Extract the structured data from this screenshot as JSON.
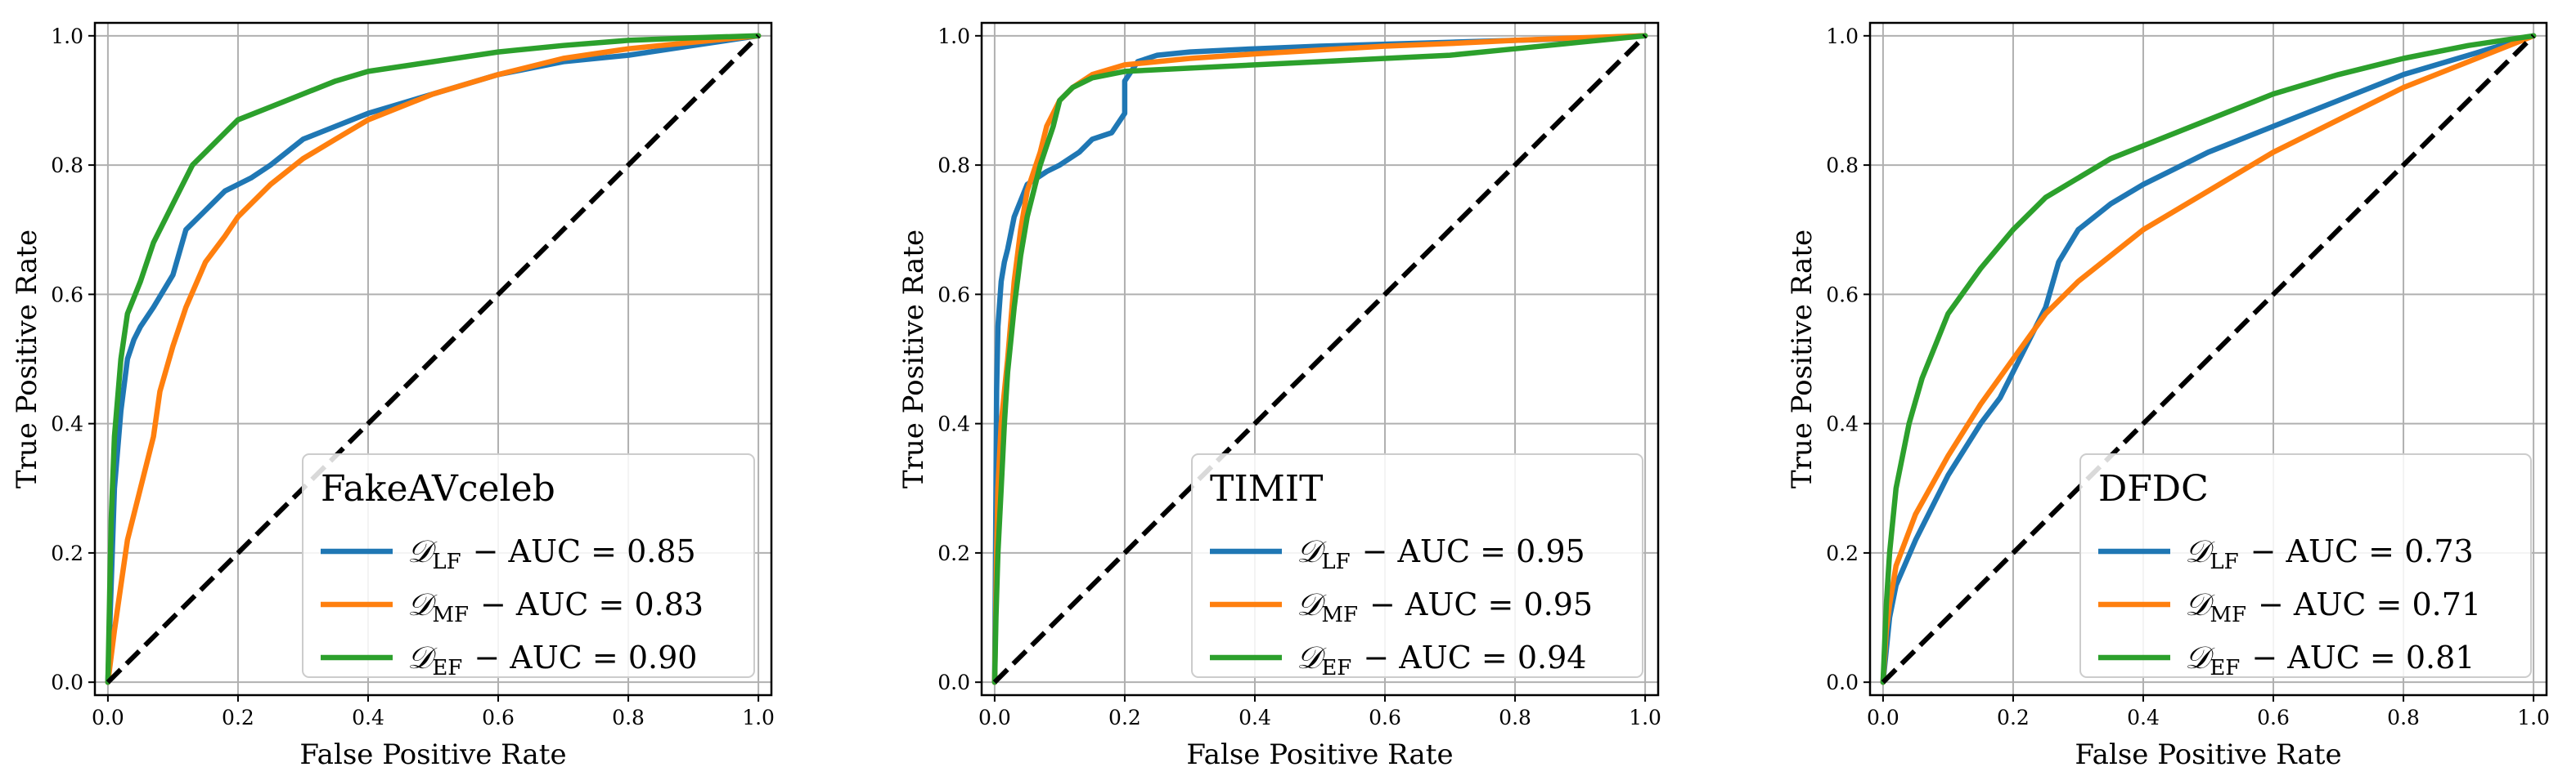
{
  "chart_data": [
    {
      "type": "line",
      "title": "FakeAVceleb",
      "xlabel": "False Positive Rate",
      "ylabel": "True Positive Rate",
      "xlim": [
        0,
        1
      ],
      "ylim": [
        0,
        1
      ],
      "grid": true,
      "legend_position": "lower-right",
      "ticks": {
        "x": [
          {
            "v": 0,
            "label": "0.0"
          },
          {
            "v": 0.2,
            "label": "0.2"
          },
          {
            "v": 0.4,
            "label": "0.4"
          },
          {
            "v": 0.6,
            "label": "0.6"
          },
          {
            "v": 0.8,
            "label": "0.8"
          },
          {
            "v": 1,
            "label": "1.0"
          }
        ],
        "y": [
          {
            "v": 0,
            "label": "0.0"
          },
          {
            "v": 0.2,
            "label": "0.2"
          },
          {
            "v": 0.4,
            "label": "0.4"
          },
          {
            "v": 0.6,
            "label": "0.6"
          },
          {
            "v": 0.8,
            "label": "0.8"
          },
          {
            "v": 1,
            "label": "1.0"
          }
        ]
      },
      "series": [
        {
          "name": "D_LF",
          "sym": "𝒟",
          "sub": "LF",
          "auc_text": "− AUC = 0.85",
          "color": "#1f77b4",
          "x": [
            0,
            0.005,
            0.01,
            0.02,
            0.03,
            0.04,
            0.05,
            0.07,
            0.1,
            0.12,
            0.15,
            0.18,
            0.22,
            0.25,
            0.3,
            0.35,
            0.4,
            0.5,
            0.6,
            0.7,
            0.8,
            0.9,
            1.0
          ],
          "y": [
            0,
            0.15,
            0.3,
            0.42,
            0.5,
            0.53,
            0.55,
            0.58,
            0.63,
            0.7,
            0.73,
            0.76,
            0.78,
            0.8,
            0.84,
            0.86,
            0.88,
            0.91,
            0.94,
            0.96,
            0.97,
            0.985,
            1.0
          ]
        },
        {
          "name": "D_MF",
          "sym": "𝒟",
          "sub": "MF",
          "auc_text": "− AUC = 0.83",
          "color": "#ff7f0e",
          "x": [
            0,
            0.01,
            0.02,
            0.03,
            0.05,
            0.07,
            0.08,
            0.1,
            0.12,
            0.15,
            0.18,
            0.2,
            0.25,
            0.3,
            0.35,
            0.4,
            0.5,
            0.6,
            0.7,
            0.8,
            0.9,
            1.0
          ],
          "y": [
            0,
            0.08,
            0.15,
            0.22,
            0.3,
            0.38,
            0.45,
            0.52,
            0.58,
            0.65,
            0.69,
            0.72,
            0.77,
            0.81,
            0.84,
            0.87,
            0.91,
            0.94,
            0.965,
            0.98,
            0.99,
            1.0
          ]
        },
        {
          "name": "D_EF",
          "sym": "𝒟",
          "sub": "EF",
          "auc_text": "− AUC = 0.90",
          "color": "#2ca02c",
          "x": [
            0,
            0.005,
            0.01,
            0.02,
            0.03,
            0.05,
            0.07,
            0.1,
            0.13,
            0.15,
            0.18,
            0.2,
            0.25,
            0.3,
            0.35,
            0.4,
            0.5,
            0.6,
            0.7,
            0.8,
            0.9,
            1.0
          ],
          "y": [
            0,
            0.25,
            0.38,
            0.5,
            0.57,
            0.62,
            0.68,
            0.74,
            0.8,
            0.82,
            0.85,
            0.87,
            0.89,
            0.91,
            0.93,
            0.945,
            0.96,
            0.975,
            0.985,
            0.993,
            0.997,
            1.0
          ]
        },
        {
          "name": "chance",
          "color": "#000000",
          "dashed": true,
          "x": [
            0,
            1
          ],
          "y": [
            0,
            1
          ]
        }
      ]
    },
    {
      "type": "line",
      "title": "TIMIT",
      "xlabel": "False Positive Rate",
      "ylabel": "True Positive Rate",
      "xlim": [
        0,
        1
      ],
      "ylim": [
        0,
        1
      ],
      "grid": true,
      "legend_position": "lower-right",
      "ticks": {
        "x": [
          {
            "v": 0,
            "label": "0.0"
          },
          {
            "v": 0.2,
            "label": "0.2"
          },
          {
            "v": 0.4,
            "label": "0.4"
          },
          {
            "v": 0.6,
            "label": "0.6"
          },
          {
            "v": 0.8,
            "label": "0.8"
          },
          {
            "v": 1,
            "label": "1.0"
          }
        ],
        "y": [
          {
            "v": 0,
            "label": "0.0"
          },
          {
            "v": 0.2,
            "label": "0.2"
          },
          {
            "v": 0.4,
            "label": "0.4"
          },
          {
            "v": 0.6,
            "label": "0.6"
          },
          {
            "v": 0.8,
            "label": "0.8"
          },
          {
            "v": 1,
            "label": "1.0"
          }
        ]
      },
      "series": [
        {
          "name": "D_LF",
          "sym": "𝒟",
          "sub": "LF",
          "auc_text": "− AUC = 0.95",
          "color": "#1f77b4",
          "x": [
            0,
            0.003,
            0.005,
            0.01,
            0.015,
            0.02,
            0.03,
            0.05,
            0.08,
            0.1,
            0.13,
            0.15,
            0.18,
            0.2,
            0.2,
            0.22,
            0.25,
            0.3,
            0.4,
            0.5,
            0.6,
            0.7,
            0.8,
            0.9,
            1.0
          ],
          "y": [
            0,
            0.45,
            0.55,
            0.62,
            0.65,
            0.67,
            0.72,
            0.77,
            0.79,
            0.8,
            0.82,
            0.84,
            0.85,
            0.88,
            0.93,
            0.96,
            0.97,
            0.975,
            0.98,
            0.984,
            0.987,
            0.99,
            0.993,
            0.996,
            1.0
          ]
        },
        {
          "name": "D_MF",
          "sym": "𝒟",
          "sub": "MF",
          "auc_text": "− AUC = 0.95",
          "color": "#ff7f0e",
          "x": [
            0,
            0.003,
            0.005,
            0.01,
            0.02,
            0.03,
            0.04,
            0.05,
            0.07,
            0.08,
            0.1,
            0.12,
            0.15,
            0.2,
            0.3,
            0.4,
            0.5,
            0.6,
            0.7,
            0.8,
            0.9,
            1.0
          ],
          "y": [
            0,
            0.2,
            0.3,
            0.4,
            0.5,
            0.62,
            0.7,
            0.76,
            0.82,
            0.86,
            0.9,
            0.92,
            0.94,
            0.955,
            0.965,
            0.972,
            0.978,
            0.984,
            0.988,
            0.993,
            0.997,
            1.0
          ]
        },
        {
          "name": "D_EF",
          "sym": "𝒟",
          "sub": "EF",
          "auc_text": "− AUC = 0.94",
          "color": "#2ca02c",
          "x": [
            0,
            0.002,
            0.005,
            0.01,
            0.015,
            0.02,
            0.03,
            0.04,
            0.05,
            0.07,
            0.09,
            0.1,
            0.12,
            0.15,
            0.2,
            0.3,
            0.4,
            0.5,
            0.6,
            0.7,
            0.8,
            0.9,
            1.0
          ],
          "y": [
            0,
            0.1,
            0.2,
            0.3,
            0.4,
            0.48,
            0.58,
            0.66,
            0.72,
            0.8,
            0.86,
            0.9,
            0.92,
            0.935,
            0.945,
            0.95,
            0.955,
            0.96,
            0.965,
            0.97,
            0.98,
            0.99,
            1.0
          ]
        },
        {
          "name": "chance",
          "color": "#000000",
          "dashed": true,
          "x": [
            0,
            1
          ],
          "y": [
            0,
            1
          ]
        }
      ]
    },
    {
      "type": "line",
      "title": "DFDC",
      "xlabel": "False Positive Rate",
      "ylabel": "True Positive Rate",
      "xlim": [
        0,
        1
      ],
      "ylim": [
        0,
        1
      ],
      "grid": true,
      "legend_position": "lower-right",
      "ticks": {
        "x": [
          {
            "v": 0,
            "label": "0.0"
          },
          {
            "v": 0.2,
            "label": "0.2"
          },
          {
            "v": 0.4,
            "label": "0.4"
          },
          {
            "v": 0.6,
            "label": "0.6"
          },
          {
            "v": 0.8,
            "label": "0.8"
          },
          {
            "v": 1,
            "label": "1.0"
          }
        ],
        "y": [
          {
            "v": 0,
            "label": "0.0"
          },
          {
            "v": 0.2,
            "label": "0.2"
          },
          {
            "v": 0.4,
            "label": "0.4"
          },
          {
            "v": 0.6,
            "label": "0.6"
          },
          {
            "v": 0.8,
            "label": "0.8"
          },
          {
            "v": 1,
            "label": "1.0"
          }
        ]
      },
      "series": [
        {
          "name": "D_LF",
          "sym": "𝒟",
          "sub": "LF",
          "auc_text": "− AUC = 0.73",
          "color": "#1f77b4",
          "x": [
            0,
            0.01,
            0.02,
            0.05,
            0.08,
            0.1,
            0.15,
            0.18,
            0.2,
            0.22,
            0.25,
            0.27,
            0.3,
            0.35,
            0.4,
            0.5,
            0.6,
            0.7,
            0.8,
            0.9,
            1.0
          ],
          "y": [
            0,
            0.1,
            0.15,
            0.22,
            0.28,
            0.32,
            0.4,
            0.44,
            0.48,
            0.52,
            0.58,
            0.65,
            0.7,
            0.74,
            0.77,
            0.82,
            0.86,
            0.9,
            0.94,
            0.97,
            1.0
          ]
        },
        {
          "name": "D_MF",
          "sym": "𝒟",
          "sub": "MF",
          "auc_text": "− AUC = 0.71",
          "color": "#ff7f0e",
          "x": [
            0,
            0.005,
            0.01,
            0.02,
            0.05,
            0.1,
            0.15,
            0.2,
            0.25,
            0.3,
            0.35,
            0.4,
            0.5,
            0.6,
            0.7,
            0.8,
            0.9,
            1.0
          ],
          "y": [
            0,
            0.08,
            0.12,
            0.18,
            0.26,
            0.35,
            0.43,
            0.5,
            0.57,
            0.62,
            0.66,
            0.7,
            0.76,
            0.82,
            0.87,
            0.92,
            0.96,
            1.0
          ]
        },
        {
          "name": "D_EF",
          "sym": "𝒟",
          "sub": "EF",
          "auc_text": "− AUC = 0.81",
          "color": "#2ca02c",
          "x": [
            0,
            0.005,
            0.01,
            0.02,
            0.04,
            0.06,
            0.08,
            0.1,
            0.15,
            0.2,
            0.25,
            0.3,
            0.35,
            0.4,
            0.5,
            0.6,
            0.7,
            0.8,
            0.9,
            1.0
          ],
          "y": [
            0,
            0.12,
            0.2,
            0.3,
            0.4,
            0.47,
            0.52,
            0.57,
            0.64,
            0.7,
            0.75,
            0.78,
            0.81,
            0.83,
            0.87,
            0.91,
            0.94,
            0.965,
            0.985,
            1.0
          ]
        },
        {
          "name": "chance",
          "color": "#000000",
          "dashed": true,
          "x": [
            0,
            1
          ],
          "y": [
            0,
            1
          ]
        }
      ]
    }
  ]
}
